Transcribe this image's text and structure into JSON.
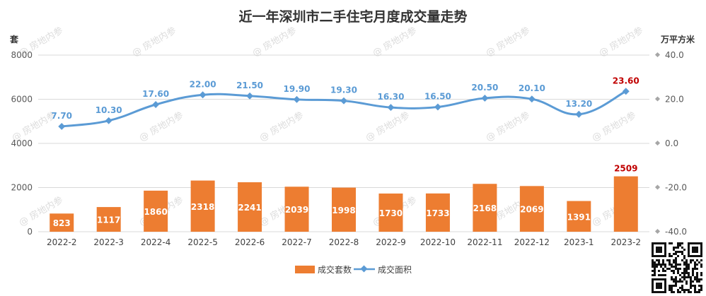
{
  "chart_data": {
    "type": "bar",
    "title": "近一年深圳市二手住宅月度成交量走势",
    "ylabel_left": "套",
    "ylabel_right": "万平方米",
    "categories": [
      "2022-2",
      "2022-3",
      "2022-4",
      "2022-5",
      "2022-6",
      "2022-7",
      "2022-8",
      "2022-9",
      "2022-10",
      "2022-11",
      "2022-12",
      "2023-1",
      "2023-2"
    ],
    "series": [
      {
        "name": "成交套数",
        "type": "bar",
        "axis": "left",
        "color": "#ED7D31",
        "values": [
          823,
          1117,
          1860,
          2318,
          2241,
          2039,
          1998,
          1730,
          1733,
          2168,
          2069,
          1391,
          2509
        ]
      },
      {
        "name": "成交面积",
        "type": "line",
        "axis": "right",
        "color": "#5B9BD5",
        "values": [
          7.7,
          10.3,
          17.6,
          22.0,
          21.5,
          19.9,
          19.3,
          16.3,
          16.5,
          20.5,
          20.1,
          13.2,
          23.6
        ]
      }
    ],
    "ylim_left": [
      0,
      8000
    ],
    "ylim_right": [
      -40,
      40
    ],
    "yticks_left": [
      "0",
      "2000",
      "4000",
      "6000",
      "8000"
    ],
    "yticks_right": [
      "-40.0",
      "-20.0",
      "0.0",
      "20.0",
      "40.0"
    ],
    "bar_labels": [
      "823",
      "1117",
      "1860",
      "2318",
      "2241",
      "2039",
      "1998",
      "1730",
      "1733",
      "2168",
      "2069",
      "1391",
      "2509"
    ],
    "line_labels": [
      "7.70",
      "10.30",
      "17.60",
      "22.00",
      "21.50",
      "19.90",
      "19.30",
      "16.30",
      "16.50",
      "20.50",
      "20.10",
      "13.20",
      "23.60"
    ],
    "highlight_color": "#C00000",
    "label_color": "#5B9BD5",
    "grid": true,
    "legend_position": "bottom"
  },
  "watermark": "房地内参",
  "legend": {
    "bar": "成交套数",
    "line": "成交面积"
  }
}
